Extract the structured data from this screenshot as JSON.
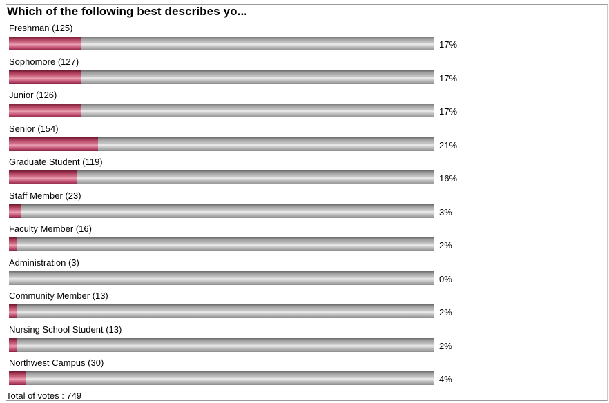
{
  "poll": {
    "title": "Which of the following best describes yo...",
    "total_label": "Total of votes : 749"
  },
  "colors": {
    "fill": "#c8577a",
    "track": "#b5b5b5",
    "border": "#9a9a9a"
  },
  "chart_data": {
    "type": "bar",
    "orientation": "horizontal",
    "title": "Which of the following best describes yo...",
    "categories": [
      "Freshman (125)",
      "Sophomore (127)",
      "Junior (126)",
      "Senior (154)",
      "Graduate Student (119)",
      "Staff Member (23)",
      "Faculty Member (16)",
      "Administration (3)",
      "Community Member (13)",
      "Nursing School Student (13)",
      "Northwest Campus (30)"
    ],
    "votes": [
      125,
      127,
      126,
      154,
      119,
      23,
      16,
      3,
      13,
      13,
      30
    ],
    "values": [
      17,
      17,
      17,
      21,
      16,
      3,
      2,
      0,
      2,
      2,
      4
    ],
    "value_labels": [
      "17%",
      "17%",
      "17%",
      "21%",
      "16%",
      "3%",
      "2%",
      "0%",
      "2%",
      "2%",
      "4%"
    ],
    "xlim": [
      0,
      100
    ],
    "total": 749
  }
}
